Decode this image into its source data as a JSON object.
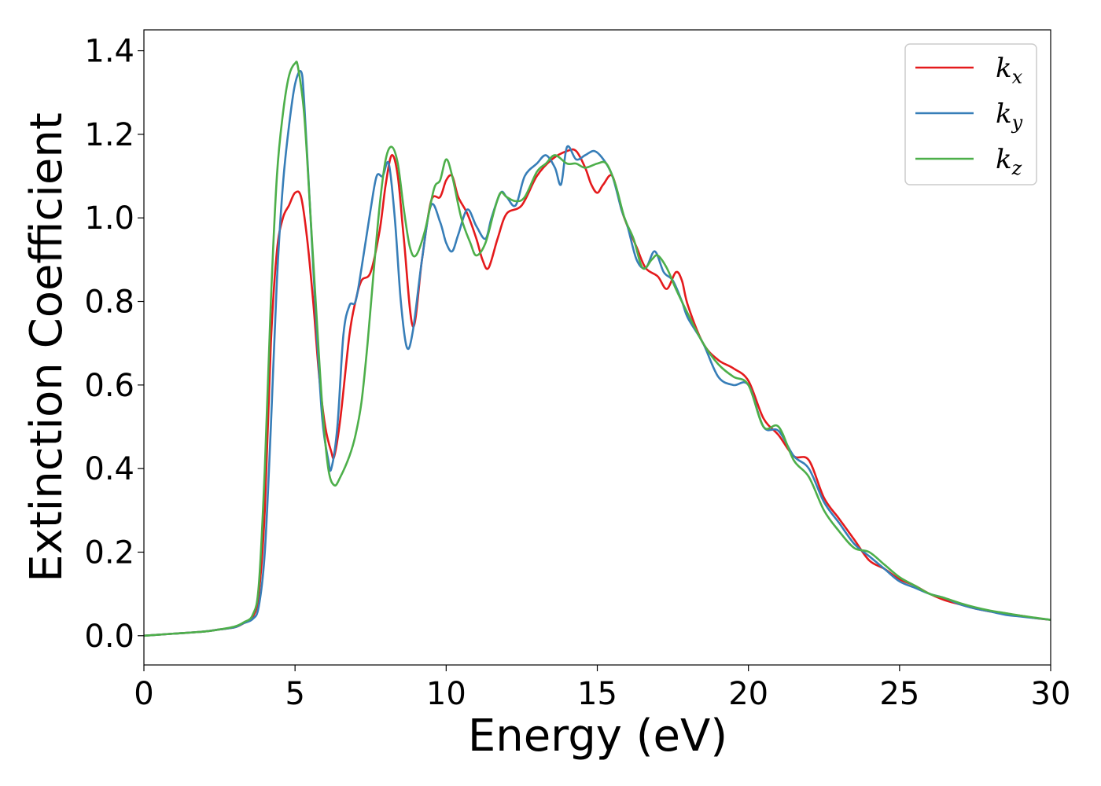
{
  "chart_data": {
    "type": "line",
    "title": "",
    "xlabel": "Energy (eV)",
    "ylabel": "Extinction Coefficient",
    "xlim": [
      0,
      30
    ],
    "ylim": [
      -0.07,
      1.45
    ],
    "xticks": [
      0,
      5,
      10,
      15,
      20,
      25,
      30
    ],
    "xtick_labels": [
      "0",
      "5",
      "10",
      "15",
      "20",
      "25",
      "30"
    ],
    "yticks": [
      0.0,
      0.2,
      0.4,
      0.6,
      0.8,
      1.0,
      1.2,
      1.4
    ],
    "ytick_labels": [
      "0.0",
      "0.2",
      "0.4",
      "0.6",
      "0.8",
      "1.0",
      "1.2",
      "1.4"
    ],
    "grid": false,
    "legend_position": "top-right",
    "series": [
      {
        "name": "k_x",
        "legend_base": "k",
        "legend_sub": "x",
        "color": "#e41a1c",
        "x": [
          0,
          1,
          2,
          2.5,
          3,
          3.3,
          3.6,
          3.8,
          4.0,
          4.2,
          4.4,
          4.6,
          4.8,
          5.0,
          5.2,
          5.4,
          5.6,
          5.8,
          6.0,
          6.2,
          6.3,
          6.5,
          6.8,
          7.0,
          7.2,
          7.5,
          7.8,
          8.0,
          8.2,
          8.4,
          8.6,
          8.9,
          9.2,
          9.5,
          9.8,
          10.0,
          10.2,
          10.4,
          10.7,
          11.0,
          11.2,
          11.4,
          11.7,
          12.0,
          12.5,
          13.0,
          13.5,
          14.0,
          14.3,
          14.6,
          14.8,
          15.0,
          15.2,
          15.5,
          15.8,
          16.0,
          16.3,
          16.6,
          17.0,
          17.3,
          17.6,
          17.8,
          18.0,
          18.5,
          19.0,
          19.5,
          20.0,
          20.5,
          21.0,
          21.5,
          22.0,
          22.5,
          23.0,
          23.5,
          24.0,
          24.5,
          25.0,
          25.5,
          26.0,
          26.5,
          27.0,
          27.5,
          28.0,
          28.5,
          29.0,
          29.5,
          30.0
        ],
        "y": [
          0.0,
          0.005,
          0.01,
          0.015,
          0.02,
          0.03,
          0.045,
          0.1,
          0.3,
          0.7,
          0.92,
          1.0,
          1.03,
          1.06,
          1.05,
          0.95,
          0.8,
          0.62,
          0.5,
          0.44,
          0.43,
          0.52,
          0.72,
          0.8,
          0.85,
          0.87,
          0.97,
          1.08,
          1.15,
          1.1,
          0.95,
          0.74,
          0.9,
          1.04,
          1.05,
          1.09,
          1.1,
          1.05,
          1.01,
          0.95,
          0.9,
          0.88,
          0.95,
          1.01,
          1.03,
          1.1,
          1.14,
          1.16,
          1.16,
          1.12,
          1.08,
          1.06,
          1.08,
          1.1,
          1.02,
          0.98,
          0.93,
          0.88,
          0.86,
          0.83,
          0.87,
          0.85,
          0.79,
          0.7,
          0.66,
          0.64,
          0.61,
          0.52,
          0.48,
          0.43,
          0.42,
          0.33,
          0.28,
          0.23,
          0.18,
          0.16,
          0.135,
          0.12,
          0.1,
          0.085,
          0.075,
          0.065,
          0.058,
          0.052,
          0.048,
          0.042,
          0.038
        ]
      },
      {
        "name": "k_y",
        "legend_base": "k",
        "legend_sub": "y",
        "color": "#377eb8",
        "x": [
          0,
          1,
          2,
          2.5,
          3,
          3.3,
          3.6,
          3.8,
          4.0,
          4.2,
          4.4,
          4.6,
          4.8,
          5.0,
          5.2,
          5.3,
          5.5,
          5.7,
          5.9,
          6.1,
          6.2,
          6.4,
          6.6,
          6.8,
          7.0,
          7.2,
          7.5,
          7.7,
          7.9,
          8.1,
          8.3,
          8.5,
          8.7,
          8.9,
          9.2,
          9.5,
          9.8,
          10.0,
          10.2,
          10.4,
          10.7,
          11.0,
          11.3,
          11.5,
          11.8,
          12.0,
          12.3,
          12.6,
          13.0,
          13.3,
          13.6,
          13.8,
          14.0,
          14.3,
          14.6,
          14.9,
          15.2,
          15.5,
          15.8,
          16.0,
          16.3,
          16.6,
          16.9,
          17.2,
          17.5,
          17.8,
          18.0,
          18.5,
          19.0,
          19.5,
          20.0,
          20.5,
          21.0,
          21.5,
          22.0,
          22.5,
          23.0,
          23.5,
          24.0,
          24.5,
          25.0,
          25.5,
          26.0,
          26.5,
          27.0,
          27.5,
          28.0,
          28.5,
          29.0,
          29.5,
          30.0
        ],
        "y": [
          0.0,
          0.005,
          0.01,
          0.015,
          0.02,
          0.03,
          0.04,
          0.07,
          0.2,
          0.5,
          0.85,
          1.08,
          1.22,
          1.32,
          1.35,
          1.28,
          1.02,
          0.75,
          0.52,
          0.42,
          0.4,
          0.5,
          0.72,
          0.79,
          0.8,
          0.88,
          1.02,
          1.1,
          1.1,
          1.13,
          1.0,
          0.8,
          0.69,
          0.73,
          0.9,
          1.03,
          0.99,
          0.94,
          0.92,
          0.96,
          1.02,
          0.98,
          0.95,
          1.0,
          1.06,
          1.05,
          1.03,
          1.1,
          1.13,
          1.15,
          1.12,
          1.08,
          1.17,
          1.14,
          1.15,
          1.16,
          1.14,
          1.1,
          1.02,
          0.98,
          0.9,
          0.88,
          0.92,
          0.87,
          0.85,
          0.8,
          0.76,
          0.7,
          0.62,
          0.6,
          0.6,
          0.5,
          0.49,
          0.43,
          0.4,
          0.32,
          0.27,
          0.22,
          0.19,
          0.16,
          0.13,
          0.115,
          0.1,
          0.09,
          0.075,
          0.065,
          0.058,
          0.05,
          0.046,
          0.042,
          0.038
        ]
      },
      {
        "name": "k_z",
        "legend_base": "k",
        "legend_sub": "z",
        "color": "#4daf4a",
        "x": [
          0,
          1,
          2,
          2.5,
          3,
          3.3,
          3.6,
          3.8,
          4.0,
          4.2,
          4.4,
          4.6,
          4.8,
          5.0,
          5.1,
          5.3,
          5.5,
          5.7,
          5.9,
          6.1,
          6.3,
          6.5,
          6.8,
          7.0,
          7.2,
          7.4,
          7.6,
          7.8,
          8.0,
          8.2,
          8.4,
          8.6,
          8.8,
          9.0,
          9.3,
          9.6,
          9.8,
          10.0,
          10.2,
          10.5,
          10.8,
          11.0,
          11.3,
          11.6,
          11.8,
          12.0,
          12.3,
          12.6,
          13.0,
          13.3,
          13.6,
          14.0,
          14.3,
          14.6,
          15.0,
          15.3,
          15.6,
          15.9,
          16.2,
          16.5,
          16.8,
          17.0,
          17.3,
          17.6,
          18.0,
          18.5,
          19.0,
          19.5,
          20.0,
          20.5,
          21.0,
          21.5,
          22.0,
          22.5,
          23.0,
          23.5,
          24.0,
          24.5,
          25.0,
          25.5,
          26.0,
          26.5,
          27.0,
          27.5,
          28.0,
          28.5,
          29.0,
          29.5,
          30.0
        ],
        "y": [
          0.0,
          0.005,
          0.01,
          0.015,
          0.022,
          0.032,
          0.05,
          0.12,
          0.4,
          0.8,
          1.1,
          1.25,
          1.34,
          1.37,
          1.36,
          1.25,
          1.02,
          0.78,
          0.55,
          0.4,
          0.36,
          0.38,
          0.43,
          0.48,
          0.56,
          0.7,
          0.87,
          1.03,
          1.14,
          1.17,
          1.13,
          1.02,
          0.93,
          0.91,
          0.97,
          1.07,
          1.09,
          1.14,
          1.1,
          1.0,
          0.94,
          0.91,
          0.94,
          1.02,
          1.06,
          1.05,
          1.04,
          1.05,
          1.11,
          1.13,
          1.15,
          1.13,
          1.13,
          1.12,
          1.13,
          1.13,
          1.08,
          1.0,
          0.95,
          0.88,
          0.9,
          0.91,
          0.88,
          0.83,
          0.77,
          0.7,
          0.65,
          0.62,
          0.6,
          0.5,
          0.5,
          0.42,
          0.38,
          0.3,
          0.25,
          0.21,
          0.2,
          0.17,
          0.14,
          0.12,
          0.1,
          0.09,
          0.078,
          0.068,
          0.06,
          0.054,
          0.048,
          0.043,
          0.038
        ]
      }
    ]
  }
}
